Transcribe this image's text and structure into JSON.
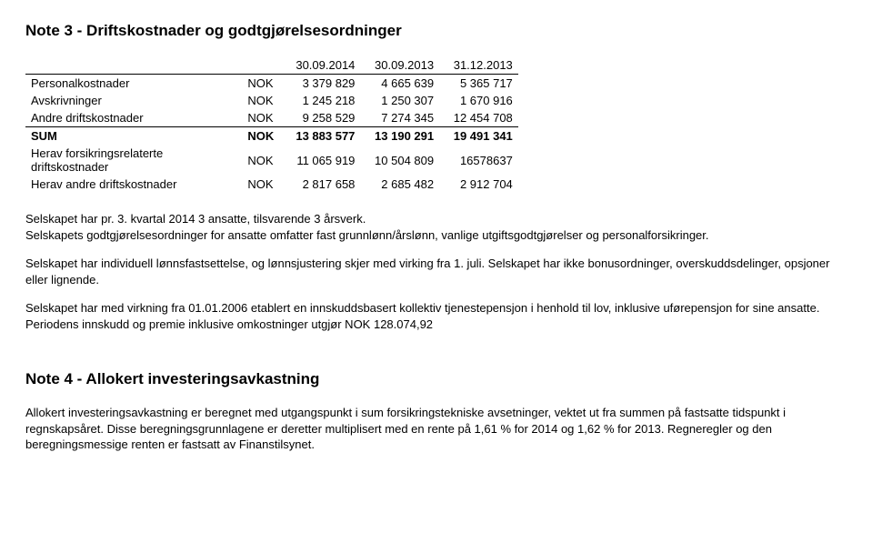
{
  "note3": {
    "title": "Note 3 - Driftskostnader og godtgjørelsesordninger",
    "headers": [
      "",
      "",
      "30.09.2014",
      "30.09.2013",
      "31.12.2013"
    ],
    "rows": [
      {
        "label": "Personalkostnader",
        "cur": "NOK",
        "c1": "3 379 829",
        "c2": "4 665 639",
        "c3": "5 365 717",
        "bold": false,
        "underline": false
      },
      {
        "label": "Avskrivninger",
        "cur": "NOK",
        "c1": "1 245 218",
        "c2": "1 250 307",
        "c3": "1 670 916",
        "bold": false,
        "underline": false
      },
      {
        "label": "Andre driftskostnader",
        "cur": "NOK",
        "c1": "9 258 529",
        "c2": "7 274 345",
        "c3": "12 454 708",
        "bold": false,
        "underline": true
      },
      {
        "label": "SUM",
        "cur": "NOK",
        "c1": "13 883 577",
        "c2": "13 190 291",
        "c3": "19 491 341",
        "bold": true,
        "underline": false
      },
      {
        "label": "Herav forsikringsrelaterte driftskostnader",
        "cur": "NOK",
        "c1": "11 065 919",
        "c2": "10 504 809",
        "c3": "16578637",
        "bold": false,
        "underline": false
      },
      {
        "label": "Herav andre driftskostnader",
        "cur": "NOK",
        "c1": "2 817 658",
        "c2": "2 685 482",
        "c3": "2 912 704",
        "bold": false,
        "underline": false
      }
    ],
    "para1": "Selskapet har pr. 3. kvartal 2014  3 ansatte, tilsvarende 3 årsverk.",
    "para2": "Selskapets godtgjørelsesordninger for ansatte omfatter fast grunnlønn/årslønn, vanlige utgiftsgodtgjørelser og personalforsikringer.",
    "para3": "Selskapet har individuell lønnsfastsettelse, og lønnsjustering skjer med virking fra 1. juli. Selskapet har ikke bonusordninger, overskuddsdelinger, opsjoner eller lignende.",
    "para4": "Selskapet har med virkning fra 01.01.2006 etablert en innskuddsbasert kollektiv tjenestepensjon i henhold til lov, inklusive uførepensjon for sine ansatte. Periodens innskudd og premie inklusive omkostninger utgjør NOK 128.074,92"
  },
  "note4": {
    "title": "Note 4 - Allokert investeringsavkastning",
    "para1": "Allokert investeringsavkastning er beregnet med utgangspunkt i sum forsikringstekniske avsetninger, vektet ut fra summen på fastsatte tidspunkt i regnskapsåret. Disse beregningsgrunnlagene er deretter multiplisert med en rente på 1,61 % for 2014 og 1,62 % for 2013. Regneregler og den beregningsmessige renten er fastsatt av Finanstilsynet."
  }
}
